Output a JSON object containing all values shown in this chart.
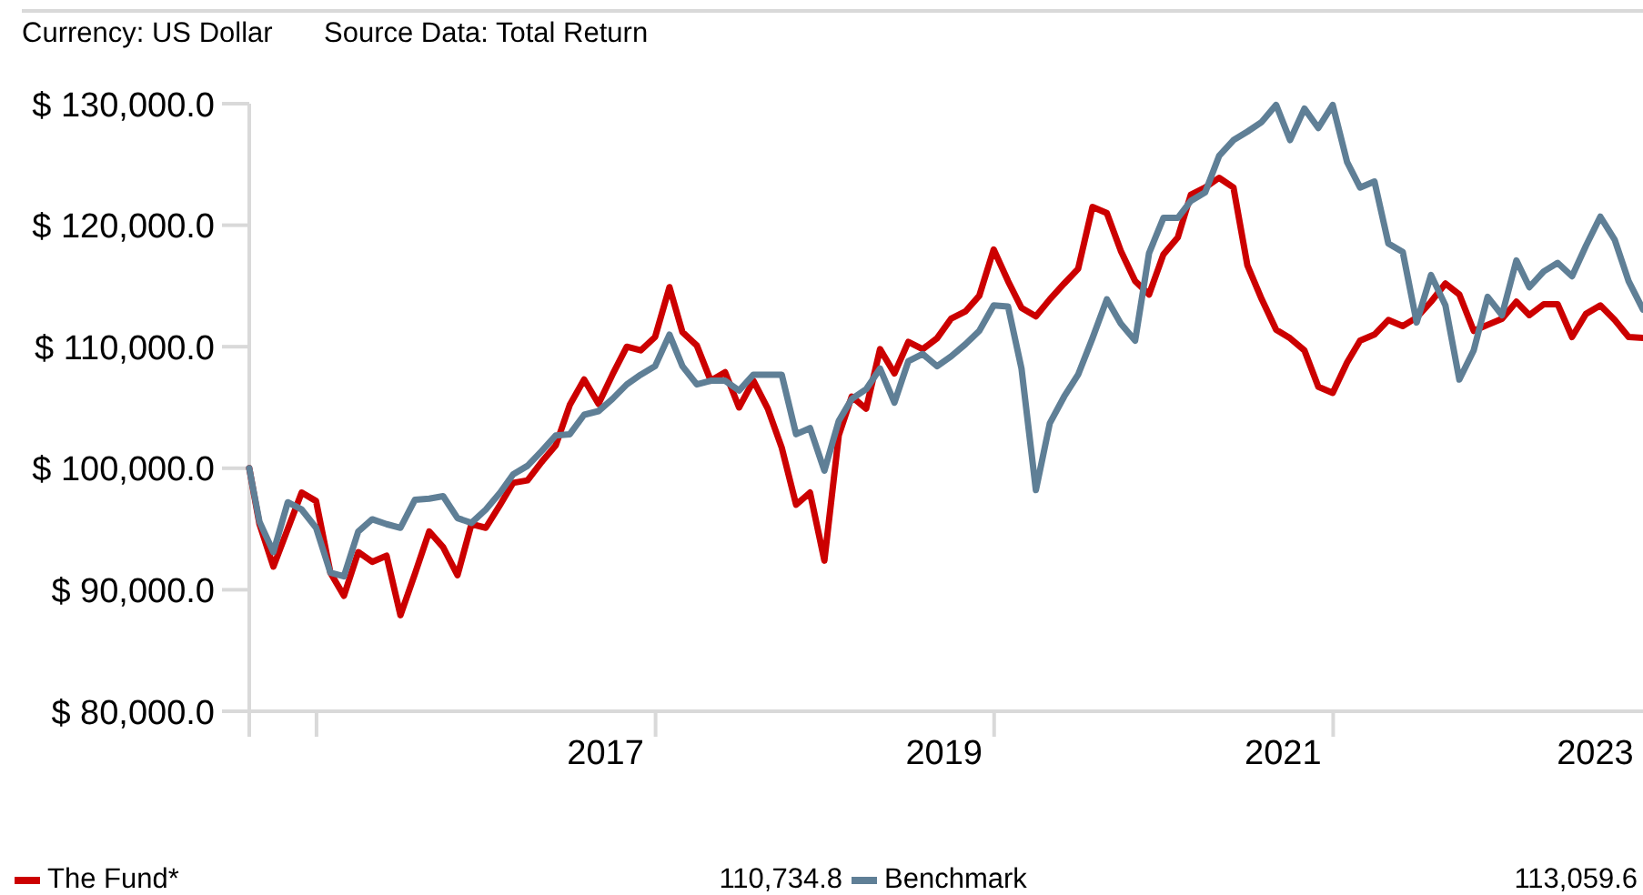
{
  "chart_data": {
    "type": "line",
    "annotations": [
      "Currency: US Dollar",
      "Source Data: Total Return",
      "110,734.8",
      "113,059.6"
    ],
    "x": [
      "2015-08-09",
      "2015-08-31",
      "2015-09-30",
      "2015-10-31",
      "2015-11-30",
      "2015-12-31",
      "2016-01-31",
      "2016-02-29",
      "2016-03-31",
      "2016-04-30",
      "2016-05-31",
      "2016-06-30",
      "2016-07-31",
      "2016-08-31",
      "2016-09-30",
      "2016-10-31",
      "2016-11-30",
      "2016-12-31",
      "2017-01-31",
      "2017-02-28",
      "2017-03-31",
      "2017-04-30",
      "2017-05-31",
      "2017-06-30",
      "2017-07-31",
      "2017-08-31",
      "2017-09-30",
      "2017-10-31",
      "2017-11-30",
      "2017-12-31",
      "2018-01-31",
      "2018-02-28",
      "2018-03-31",
      "2018-04-30",
      "2018-05-31",
      "2018-06-30",
      "2018-07-31",
      "2018-08-31",
      "2018-09-30",
      "2018-10-31",
      "2018-11-30",
      "2018-12-31",
      "2019-01-31",
      "2019-02-28",
      "2019-03-31",
      "2019-04-30",
      "2019-05-31",
      "2019-06-30",
      "2019-07-31",
      "2019-08-31",
      "2019-09-30",
      "2019-10-31",
      "2019-11-30",
      "2019-12-31",
      "2020-01-31",
      "2020-02-29",
      "2020-03-31",
      "2020-04-30",
      "2020-05-31",
      "2020-06-30",
      "2020-07-31",
      "2020-08-31",
      "2020-09-30",
      "2020-10-31",
      "2020-11-30",
      "2020-12-31",
      "2021-01-31",
      "2021-02-28",
      "2021-03-31",
      "2021-04-30",
      "2021-05-31",
      "2021-06-30",
      "2021-07-31",
      "2021-08-31",
      "2021-09-30",
      "2021-10-31",
      "2021-11-30",
      "2021-12-31",
      "2022-01-31",
      "2022-02-28",
      "2022-03-31",
      "2022-04-30",
      "2022-05-31",
      "2022-06-30",
      "2022-07-31",
      "2022-08-31",
      "2022-09-30",
      "2022-10-31",
      "2022-11-30",
      "2022-12-31",
      "2023-01-31",
      "2023-02-28",
      "2023-03-31",
      "2023-04-30",
      "2023-05-31",
      "2023-06-30",
      "2023-07-31",
      "2023-08-31",
      "2023-09-30",
      "2023-10-31"
    ],
    "series": [
      {
        "name": "The Fund*",
        "color": "#cc0000",
        "values": [
          100000,
          95400,
          91900,
          95000,
          98000,
          97300,
          91400,
          89500,
          93100,
          92300,
          92800,
          87900,
          91300,
          94800,
          93500,
          91200,
          95400,
          95100,
          97000,
          98800,
          99000,
          100500,
          101900,
          105200,
          107300,
          105300,
          107700,
          110000,
          109700,
          110800,
          114900,
          111200,
          110100,
          107200,
          107900,
          105000,
          107200,
          104900,
          101700,
          97000,
          98000,
          92400,
          102700,
          105900,
          104900,
          109800,
          107800,
          110400,
          109800,
          110700,
          112300,
          112900,
          114200,
          118000,
          115400,
          113200,
          112500,
          113900,
          115200,
          116400,
          121500,
          121000,
          117900,
          115400,
          114300,
          117600,
          119000,
          122500,
          123100,
          123900,
          123100,
          116700,
          113900,
          111400,
          110700,
          109700,
          106700,
          106200,
          108700,
          110500,
          111000,
          112200,
          111700,
          112400,
          113700,
          115200,
          114300,
          111300,
          111800,
          112300,
          113700,
          112600,
          113500,
          113500,
          110800,
          112700,
          113400,
          112200,
          110800,
          110734.8
        ]
      },
      {
        "name": "Benchmark",
        "color": "#5f7f96",
        "values": [
          100000,
          95600,
          93100,
          97200,
          96600,
          95100,
          91400,
          91100,
          94800,
          95800,
          95400,
          95100,
          97400,
          97500,
          97700,
          95900,
          95500,
          96600,
          98000,
          99500,
          100200,
          101400,
          102700,
          102800,
          104400,
          104700,
          105700,
          106900,
          107700,
          108400,
          111000,
          108400,
          106900,
          107200,
          107200,
          106400,
          107700,
          107700,
          107700,
          102800,
          103300,
          99800,
          103900,
          105700,
          106500,
          108200,
          105400,
          108800,
          109400,
          108400,
          109200,
          110200,
          111300,
          113400,
          113300,
          108200,
          98200,
          103700,
          105900,
          107700,
          110700,
          113900,
          111900,
          110500,
          117700,
          120600,
          120600,
          122000,
          122700,
          125700,
          127000,
          127700,
          128500,
          129900,
          127000,
          129600,
          128000,
          129900,
          125200,
          123100,
          123600,
          118500,
          117800,
          112000,
          115900,
          113400,
          107300,
          109700,
          114100,
          112600,
          117100,
          114900,
          116200,
          116900,
          115800,
          118300,
          120700,
          118800,
          115400,
          113059.6
        ]
      }
    ],
    "xlim": [
      "2015-08-09",
      "2023-10-31"
    ],
    "xticks": [
      {
        "value": "2016-01-01",
        "label": null
      },
      {
        "value": "2017-09-15",
        "label": "2017"
      },
      {
        "value": "2018-01-01",
        "label": null
      },
      {
        "value": "2019-09-15",
        "label": "2019"
      },
      {
        "value": "2020-01-01",
        "label": null
      },
      {
        "value": "2021-09-15",
        "label": "2021"
      },
      {
        "value": "2022-01-01",
        "label": null
      },
      {
        "value": "2023-07-20",
        "label": "2023"
      }
    ],
    "ylim": [
      80000,
      130000
    ],
    "yticks": [
      {
        "value": 80000,
        "label": "$ 80,000.0"
      },
      {
        "value": 90000,
        "label": "$ 90,000.0"
      },
      {
        "value": 100000,
        "label": "$ 100,000.0"
      },
      {
        "value": 110000,
        "label": "$ 110,000.0"
      },
      {
        "value": 120000,
        "label": "$ 120,000.0"
      },
      {
        "value": 130000,
        "label": "$ 130,000.0"
      }
    ],
    "legend": "bottom"
  }
}
